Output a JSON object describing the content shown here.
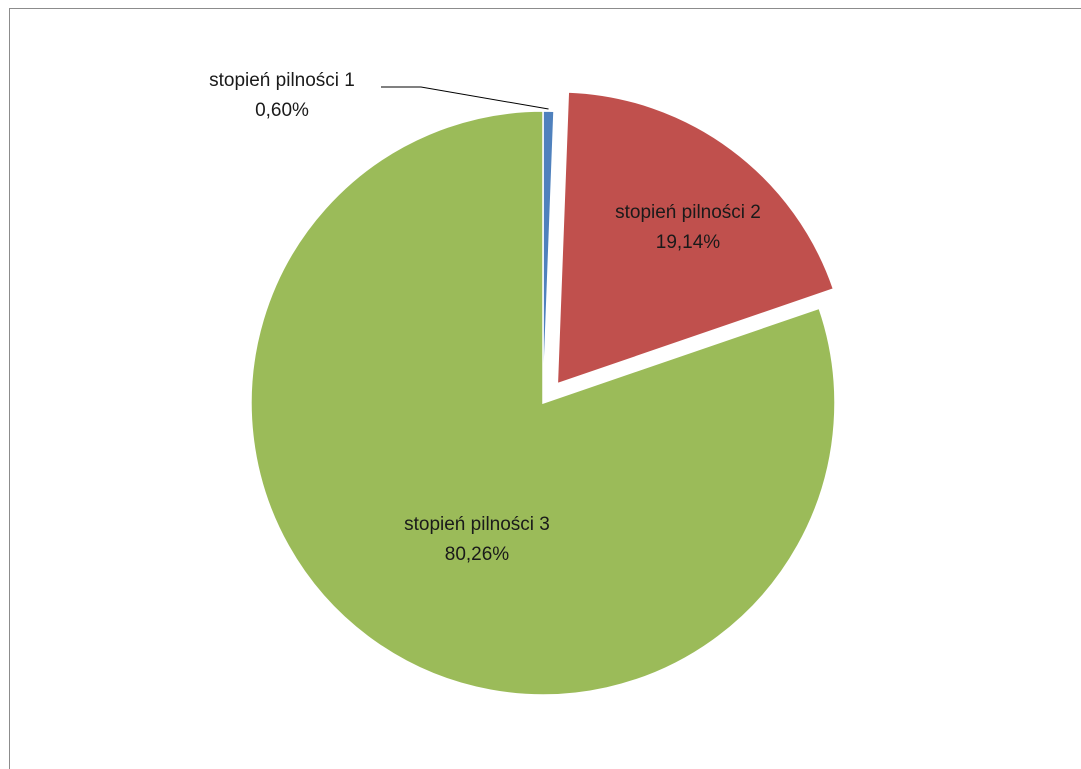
{
  "chart_data": {
    "type": "pie",
    "title": "",
    "exploded_slice": "stopień pilności 2",
    "slices": [
      {
        "label": "stopień pilności 1",
        "value": 0.6,
        "value_label": "0,60%",
        "color": "#4f81bd",
        "label_placement": "outside-with-leader-line"
      },
      {
        "label": "stopień pilności 2",
        "value": 19.14,
        "value_label": "19,14%",
        "color": "#c0504d",
        "label_placement": "inside"
      },
      {
        "label": "stopień pilności 3",
        "value": 80.26,
        "value_label": "80,26%",
        "color": "#9bbb59",
        "label_placement": "inside"
      }
    ]
  }
}
